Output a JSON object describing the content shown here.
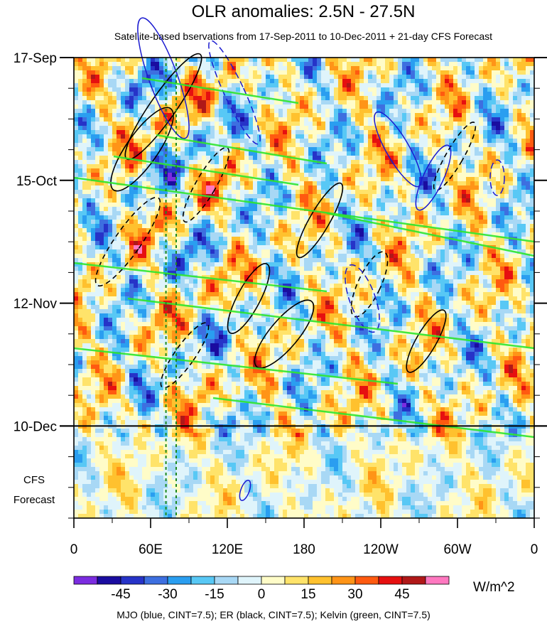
{
  "chart_data": {
    "type": "heatmap",
    "title": "OLR anomalies: 2.5N - 27.5N",
    "subtitle": "Satellite-based bservations from 17-Sep-2011 to 10-Dec-2011 + 21-day CFS Forecast",
    "x_ticks": [
      {
        "lon": 0,
        "label": "0"
      },
      {
        "lon": 60,
        "label": "60E"
      },
      {
        "lon": 120,
        "label": "120E"
      },
      {
        "lon": 180,
        "label": "180"
      },
      {
        "lon": 240,
        "label": "120W"
      },
      {
        "lon": 300,
        "label": "60W"
      },
      {
        "lon": 360,
        "label": "0"
      }
    ],
    "x_range": [
      0,
      360
    ],
    "y_range_days": [
      0,
      105
    ],
    "y_ticks": [
      {
        "day": 0,
        "label": "17-Sep"
      },
      {
        "day": 28,
        "label": "15-Oct"
      },
      {
        "day": 56,
        "label": "12-Nov"
      },
      {
        "day": 84,
        "label": "10-Dec"
      }
    ],
    "observation_end_day": 84,
    "forecast_label_line1": "CFS",
    "forecast_label_line2": "Forecast",
    "colorbar": {
      "levels": [
        -60,
        -52.5,
        -45,
        -37.5,
        -30,
        -22.5,
        -15,
        -7.5,
        0,
        7.5,
        15,
        22.5,
        30,
        37.5,
        45,
        52.5,
        60
      ],
      "labels": [
        {
          "value": -45,
          "label": "-45"
        },
        {
          "value": -30,
          "label": "-30"
        },
        {
          "value": -15,
          "label": "-15"
        },
        {
          "value": 0,
          "label": "0"
        },
        {
          "value": 15,
          "label": "15"
        },
        {
          "value": 30,
          "label": "30"
        },
        {
          "value": 45,
          "label": "45"
        }
      ],
      "colors": [
        "#7b2ce0",
        "#1a0ca0",
        "#2633c8",
        "#3d6fe0",
        "#2a9ef0",
        "#58c8f5",
        "#a8d8f5",
        "#dff4fb",
        "#fffcc8",
        "#ffe36a",
        "#ffc12e",
        "#ff9417",
        "#ff5a10",
        "#e61010",
        "#b01818",
        "#ff78c0"
      ],
      "units": "W/m^2"
    },
    "overlays": [
      {
        "name": "MJO",
        "color": "blue",
        "cint": 7.5
      },
      {
        "name": "ER",
        "color": "black",
        "cint": 7.5
      },
      {
        "name": "Kelvin",
        "color": "green",
        "cint": 7.5
      }
    ],
    "legend_text": "MJO (blue, CINT=7.5); ER (black, CINT=7.5); Kelvin (green, CINT=7.5)",
    "vertical_reference_lines_lon": [
      72,
      80
    ]
  }
}
